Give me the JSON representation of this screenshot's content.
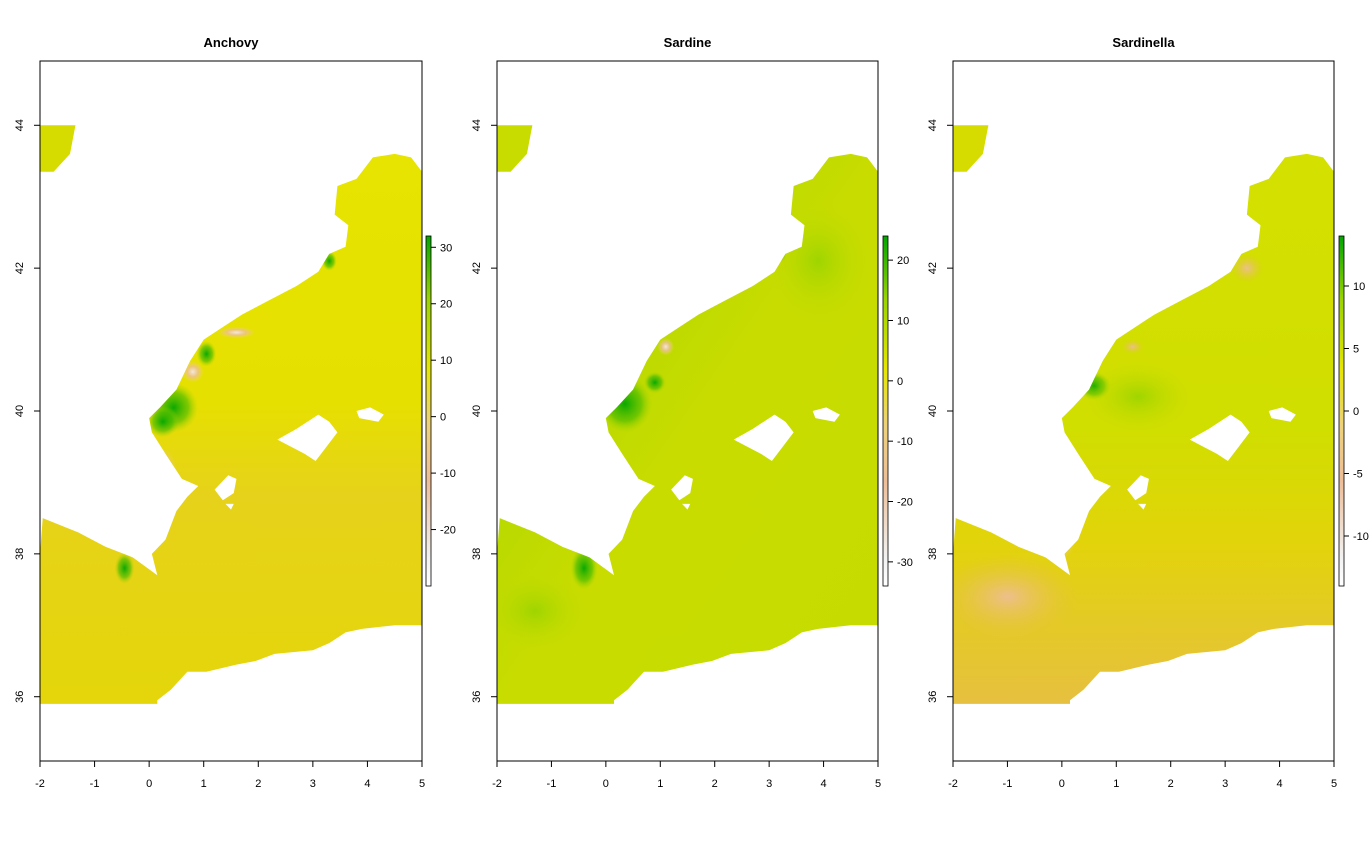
{
  "panels": [
    {
      "title": "Anchovy",
      "legend": {
        "min": -30,
        "max": 32,
        "ticks": [
          30,
          20,
          10,
          0,
          -10,
          -20
        ]
      }
    },
    {
      "title": "Sardine",
      "legend": {
        "min": -34,
        "max": 24,
        "ticks": [
          20,
          10,
          0,
          -10,
          -20,
          -30
        ]
      }
    },
    {
      "title": "Sardinella",
      "legend": {
        "min": -14,
        "max": 14,
        "ticks": [
          10,
          5,
          0,
          -5,
          -10
        ],
        "tick_labels": [
          "10",
          "5",
          "0",
          "-5",
          "-10"
        ]
      }
    }
  ],
  "axes": {
    "x_ticks": [
      -2,
      -1,
      0,
      1,
      2,
      3,
      4,
      5
    ],
    "y_ticks": [
      36,
      38,
      40,
      42,
      44
    ],
    "xlim": [
      -2,
      5
    ],
    "ylim": [
      35.1,
      44.9
    ]
  },
  "colors": {
    "ramp": [
      "#f2f2f2",
      "#eebe98",
      "#eed27a",
      "#e6e600",
      "#9ad400",
      "#00a600"
    ],
    "land": "#ffffff",
    "frame": "#000000"
  }
}
